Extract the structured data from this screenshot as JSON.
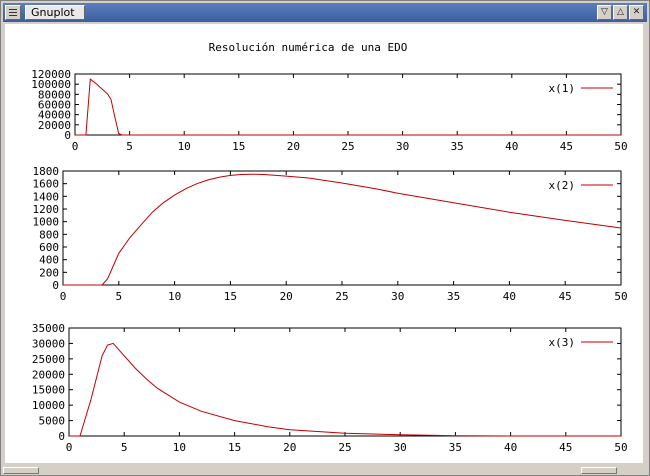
{
  "window": {
    "title": "Gnuplot",
    "buttons": [
      "minimize",
      "maximize",
      "close"
    ]
  },
  "colors": {
    "series": "#c00000",
    "axis": "#000000",
    "background": "#ffffff"
  },
  "chart_data": [
    {
      "type": "line",
      "title": "Resolución numérica de una EDO",
      "legend": "top-right",
      "grid": false,
      "xlim": [
        0,
        50
      ],
      "ylim": [
        0,
        120000
      ],
      "xticks": [
        0,
        5,
        10,
        15,
        20,
        25,
        30,
        35,
        40,
        45,
        50
      ],
      "yticks": [
        0,
        20000,
        40000,
        60000,
        80000,
        100000,
        120000
      ],
      "series": [
        {
          "name": "x(1)",
          "x": [
            0,
            1,
            1.4,
            2,
            2.5,
            3,
            3.3,
            3.6,
            4,
            4.3,
            5,
            50
          ],
          "y": [
            0,
            0,
            110000,
            100000,
            90000,
            80000,
            70000,
            40000,
            3000,
            0,
            0,
            0
          ]
        }
      ]
    },
    {
      "type": "line",
      "title": "",
      "legend": "top-right",
      "grid": false,
      "xlim": [
        0,
        50
      ],
      "ylim": [
        0,
        1800
      ],
      "xticks": [
        0,
        5,
        10,
        15,
        20,
        25,
        30,
        35,
        40,
        45,
        50
      ],
      "yticks": [
        0,
        200,
        400,
        600,
        800,
        1000,
        1200,
        1400,
        1600,
        1800
      ],
      "series": [
        {
          "name": "x(2)",
          "x": [
            0,
            3.5,
            4,
            4.5,
            5,
            6,
            7,
            8,
            9,
            10,
            11,
            12,
            13,
            14,
            15,
            16,
            17,
            18,
            20,
            22,
            25,
            28,
            30,
            35,
            40,
            45,
            50
          ],
          "y": [
            0,
            0,
            100,
            300,
            500,
            750,
            950,
            1150,
            1300,
            1420,
            1520,
            1600,
            1660,
            1700,
            1730,
            1745,
            1750,
            1745,
            1720,
            1690,
            1610,
            1520,
            1450,
            1300,
            1150,
            1020,
            900
          ]
        }
      ]
    },
    {
      "type": "line",
      "title": "",
      "legend": "top-right",
      "grid": false,
      "xlim": [
        0,
        50
      ],
      "ylim": [
        0,
        35000
      ],
      "xticks": [
        0,
        5,
        10,
        15,
        20,
        25,
        30,
        35,
        40,
        45,
        50
      ],
      "yticks": [
        0,
        5000,
        10000,
        15000,
        20000,
        25000,
        30000,
        35000
      ],
      "series": [
        {
          "name": "x(3)",
          "x": [
            0,
            1,
            2,
            3,
            3.5,
            4,
            5,
            6,
            7,
            8,
            10,
            12,
            15,
            18,
            20,
            25,
            30,
            32,
            35,
            40,
            50
          ],
          "y": [
            0,
            0,
            12000,
            26000,
            29500,
            30000,
            26000,
            22000,
            18500,
            15500,
            11000,
            8000,
            5000,
            3000,
            2000,
            900,
            400,
            300,
            100,
            0,
            0
          ]
        }
      ]
    }
  ]
}
